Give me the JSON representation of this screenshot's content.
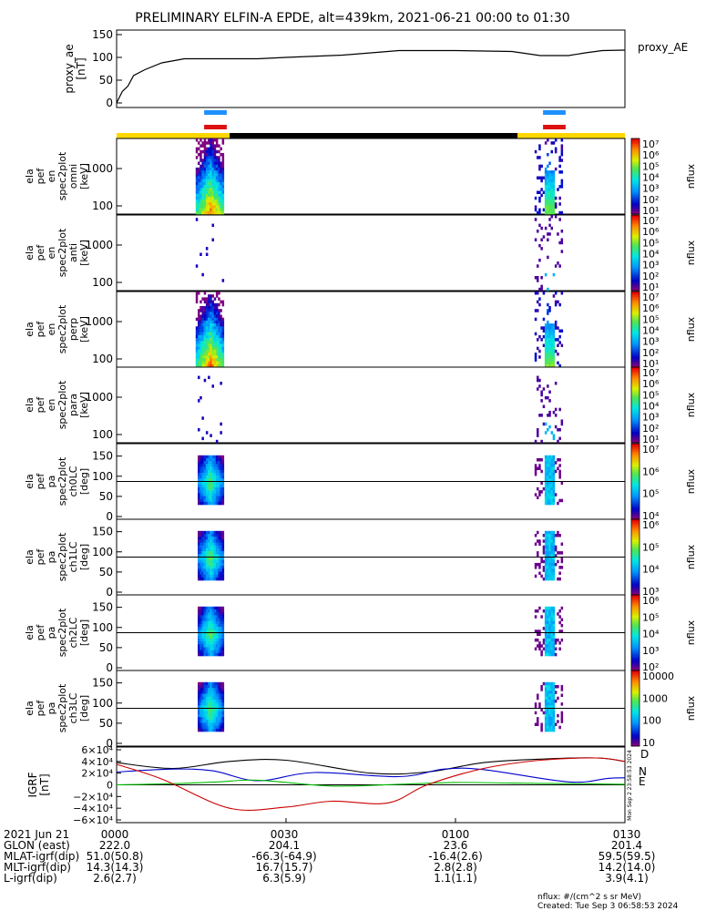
{
  "chart_data": {
    "type": "spectrogram",
    "title": "PRELIMINARY ELFIN-A EPDE, alt=439km, 2021-06-21 00:00 to 01:30",
    "time_axis": {
      "range": [
        "00:00",
        "01:30"
      ],
      "ticks": [
        "0000",
        "0030",
        "0100",
        "0130"
      ],
      "date_label": "2021 Jun 21"
    },
    "proxy_ae": {
      "ylabel_lines": [
        "proxy_ae",
        "[nT]"
      ],
      "legend": "proxy_AE",
      "ylim": [
        0,
        150
      ],
      "yticks": [
        "150",
        "100",
        "50",
        "0"
      ],
      "minutes": [
        0,
        1,
        2,
        3,
        5,
        8,
        12,
        16,
        20,
        25,
        30,
        40,
        50,
        60,
        70,
        75,
        80,
        83,
        86,
        90
      ],
      "values": [
        0,
        25,
        37,
        60,
        73,
        88,
        97,
        97,
        97,
        97,
        100,
        105,
        115,
        115,
        113,
        104,
        104,
        110,
        115,
        116
      ]
    },
    "indicator_bars": {
      "science_zones": [
        {
          "color": "#1e90ff",
          "start_min": 15.5,
          "end_min": 19.5
        },
        {
          "color": "#1e90ff",
          "start_min": 75.5,
          "end_min": 79.5
        },
        {
          "color": "#dd1111",
          "start_min": 15.5,
          "end_min": 19.5
        },
        {
          "color": "#dd1111",
          "start_min": 75.5,
          "end_min": 79.5
        }
      ],
      "sunlight": [
        {
          "color": "#ffd700",
          "start_min": 0,
          "end_min": 20
        },
        {
          "color": "#000000",
          "start_min": 20,
          "end_min": 71
        },
        {
          "color": "#ffd700",
          "start_min": 71,
          "end_min": 90
        }
      ]
    },
    "spectrogram_panels": [
      {
        "name": "en-omni",
        "ylabel_lines": [
          "ela",
          "pef",
          "en",
          "spec2plot",
          "omni",
          "[keV]"
        ],
        "yticks": [
          "1000",
          "100"
        ],
        "yscale": "log",
        "colorbar": {
          "label": "nflux",
          "ticks": [
            "10⁷",
            "10⁶",
            "10⁵",
            "10⁴",
            "10³",
            "10²",
            "10¹"
          ]
        }
      },
      {
        "name": "en-anti",
        "ylabel_lines": [
          "ela",
          "pef",
          "en",
          "spec2plot",
          "anti",
          "[keV]"
        ],
        "yticks": [
          "1000",
          "100"
        ],
        "yscale": "log",
        "colorbar": {
          "label": "nflux",
          "ticks": [
            "10⁷",
            "10⁶",
            "10⁵",
            "10⁴",
            "10³",
            "10²",
            "10¹"
          ]
        }
      },
      {
        "name": "en-perp",
        "ylabel_lines": [
          "ela",
          "pef",
          "en",
          "spec2plot",
          "perp",
          "[keV]"
        ],
        "yticks": [
          "1000",
          "100"
        ],
        "yscale": "log",
        "colorbar": {
          "label": "nflux",
          "ticks": [
            "10⁷",
            "10⁶",
            "10⁵",
            "10⁴",
            "10³",
            "10²",
            "10¹"
          ]
        }
      },
      {
        "name": "en-para",
        "ylabel_lines": [
          "ela",
          "pef",
          "en",
          "spec2plot",
          "para",
          "[keV]"
        ],
        "yticks": [
          "1000",
          "100"
        ],
        "yscale": "log",
        "colorbar": {
          "label": "nflux",
          "ticks": [
            "10⁷",
            "10⁶",
            "10⁵",
            "10⁴",
            "10³",
            "10²",
            "10¹"
          ]
        }
      },
      {
        "name": "pa-ch0",
        "ylabel_lines": [
          "ela",
          "pef",
          "pa",
          "spec2plot",
          "ch0LC",
          "[deg]"
        ],
        "yticks": [
          "150",
          "100",
          "50",
          "0"
        ],
        "yscale": "linear",
        "colorbar": {
          "label": "nflux",
          "ticks": [
            "10⁷",
            "10⁶",
            "10⁵",
            "10⁴"
          ]
        }
      },
      {
        "name": "pa-ch1",
        "ylabel_lines": [
          "ela",
          "pef",
          "pa",
          "spec2plot",
          "ch1LC",
          "[deg]"
        ],
        "yticks": [
          "150",
          "100",
          "50",
          "0"
        ],
        "yscale": "linear",
        "colorbar": {
          "label": "nflux",
          "ticks": [
            "10⁶",
            "10⁵",
            "10⁴",
            "10³"
          ]
        }
      },
      {
        "name": "pa-ch2",
        "ylabel_lines": [
          "ela",
          "pef",
          "pa",
          "spec2plot",
          "ch2LC",
          "[deg]"
        ],
        "yticks": [
          "150",
          "100",
          "50",
          "0"
        ],
        "yscale": "linear",
        "colorbar": {
          "label": "nflux",
          "ticks": [
            "10⁶",
            "10⁵",
            "10⁴",
            "10³",
            "10²"
          ]
        }
      },
      {
        "name": "pa-ch3",
        "ylabel_lines": [
          "ela",
          "pef",
          "pa",
          "spec2plot",
          "ch3LC",
          "[deg]"
        ],
        "yticks": [
          "150",
          "100",
          "50",
          "0"
        ],
        "yscale": "linear",
        "colorbar": {
          "label": "nflux",
          "ticks": [
            "10000",
            "1000",
            "100",
            "10"
          ]
        }
      }
    ],
    "flux_events": [
      {
        "start_min": 14,
        "end_min": 19
      },
      {
        "start_min": 74,
        "end_min": 79
      }
    ],
    "igrf_panel": {
      "ylabel_lines": [
        "IGRF",
        "[nT]"
      ],
      "ylim": [
        -60000,
        60000
      ],
      "yticks": [
        "6×10⁴",
        "4×10⁴",
        "2×10⁴",
        "0",
        "−2×10⁴",
        "−4×10⁴",
        "−6×10⁴"
      ],
      "series": [
        {
          "name": "D",
          "color": "#000000",
          "minutes": [
            0,
            10,
            20,
            30,
            45,
            55,
            65,
            75,
            85,
            90
          ],
          "values": [
            38000,
            28000,
            40000,
            42000,
            20000,
            22000,
            38000,
            44000,
            46000,
            40000
          ]
        },
        {
          "name": "N",
          "color": "#0000cc",
          "minutes": [
            0,
            10,
            17,
            25,
            35,
            50,
            58,
            65,
            80,
            87,
            90
          ],
          "values": [
            22000,
            27000,
            24000,
            7000,
            21000,
            14000,
            27000,
            26000,
            5000,
            11000,
            12000
          ]
        },
        {
          "name": "E",
          "color": "#00bb00",
          "minutes": [
            0,
            10,
            18,
            25,
            38,
            50,
            60,
            70,
            80,
            90
          ],
          "values": [
            0,
            2000,
            5000,
            8000,
            -2000,
            1000,
            4000,
            3000,
            2000,
            1000
          ]
        },
        {
          "name": "red",
          "color": "#cc0000",
          "minutes": [
            0,
            8,
            20,
            30,
            38,
            48,
            55,
            65,
            75,
            85,
            90
          ],
          "values": [
            35000,
            10000,
            -40000,
            -38000,
            -28000,
            -31000,
            0,
            28000,
            42000,
            46000,
            40000
          ]
        }
      ]
    },
    "ephemeris": {
      "labels": [
        "2021 Jun 21",
        "GLON (east)",
        "MLAT-igrf(dip)",
        "MLT-igrf(dip)",
        "L-igrf(dip)"
      ],
      "rows": [
        [
          "0000",
          "0030",
          "0100",
          "0130"
        ],
        [
          "222.0",
          "204.1",
          "23.6",
          "201.4"
        ],
        [
          "51.0(50.8)",
          "-66.3(-64.9)",
          "-16.4(2.6)",
          "59.5(59.5)"
        ],
        [
          "14.3(14.3)",
          "16.7(15.7)",
          "2.8(2.8)",
          "14.2(14.0)"
        ],
        [
          "2.6(2.7)",
          "6.3(5.9)",
          "1.1(1.1)",
          "3.9(4.1)"
        ]
      ]
    },
    "footer": {
      "units": "nflux: #/(cm^2 s sr MeV)",
      "created": "Created: Tue Sep  3 06:58:53 2024",
      "side_stamp": "Mon Sep  2 23:58:53 2024"
    }
  }
}
